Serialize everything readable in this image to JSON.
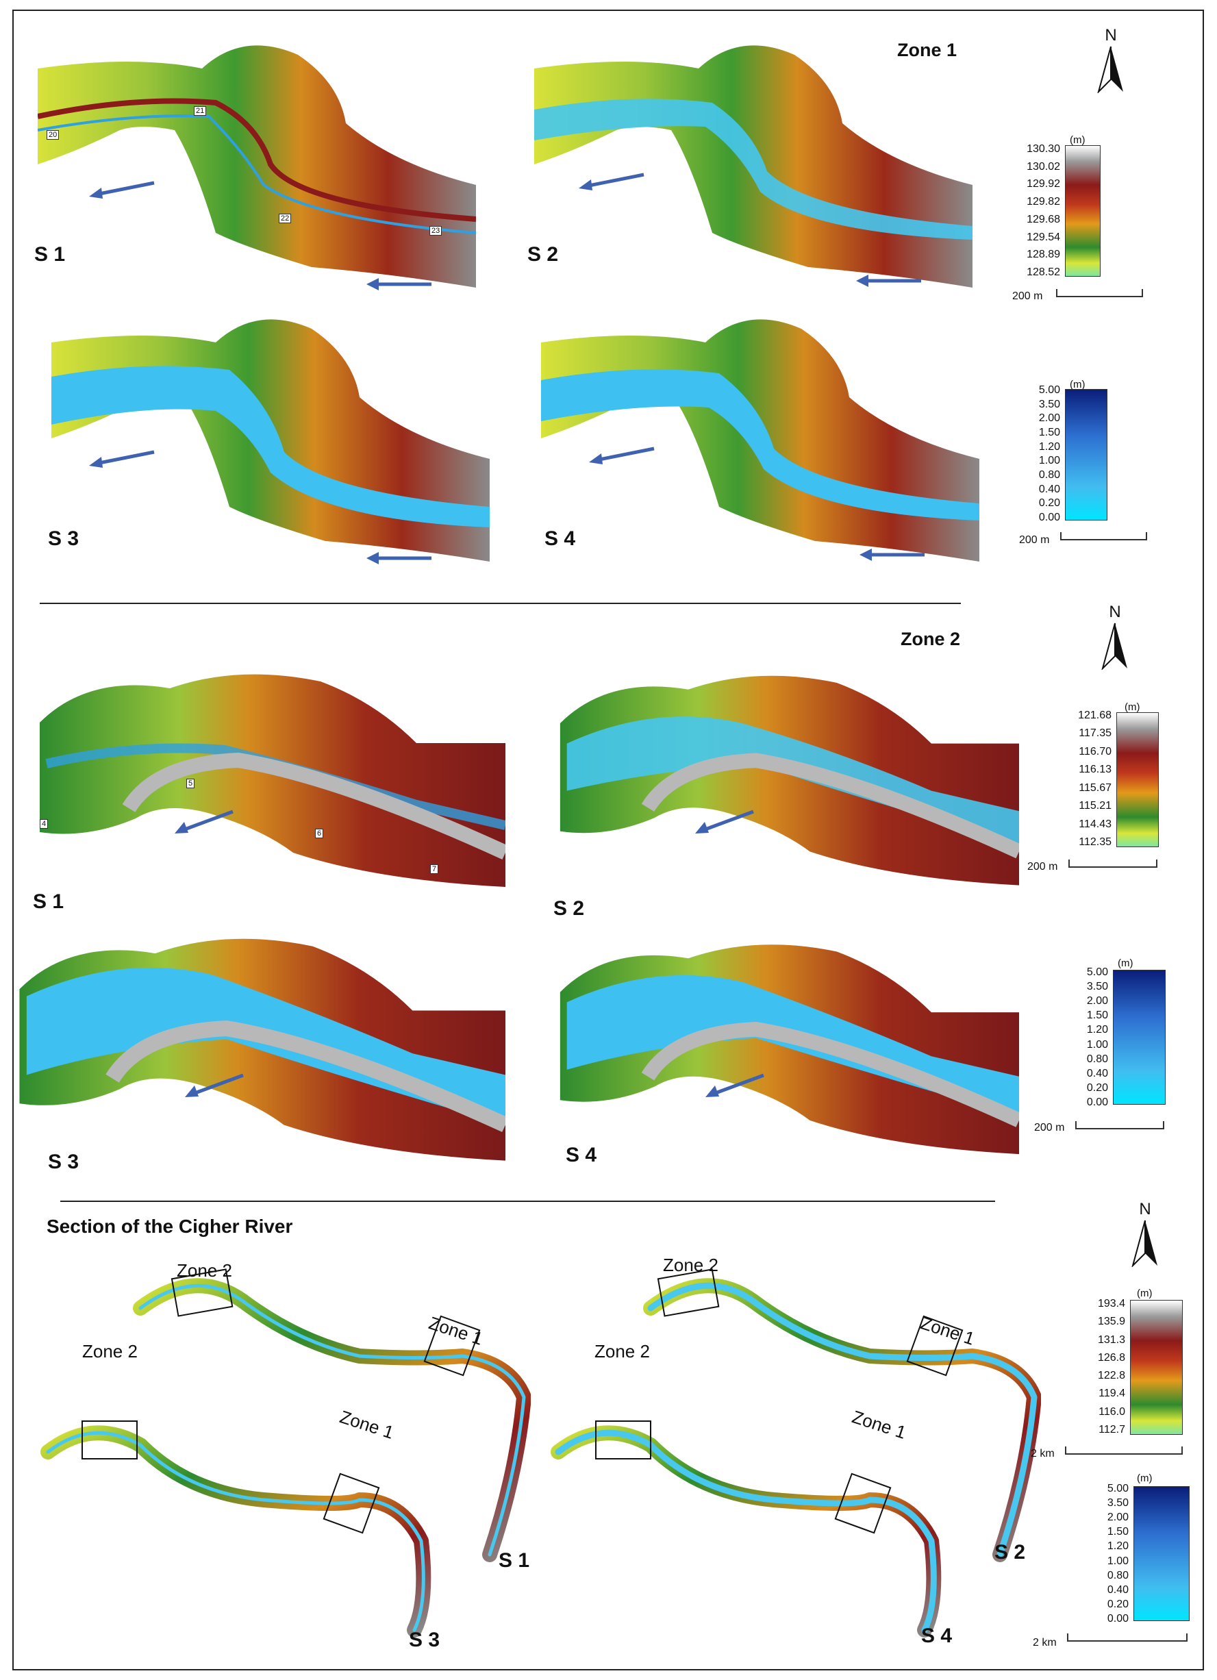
{
  "panels": {
    "zone1": {
      "title": "Zone 1",
      "scenarios": [
        "S 1",
        "S 2",
        "S 3",
        "S 4"
      ],
      "cross_sections": [
        "20",
        "21",
        "22",
        "23"
      ],
      "elevation_legend": {
        "unit": "(m)",
        "ticks": [
          "130.30",
          "130.02",
          "129.92",
          "129.82",
          "129.68",
          "129.54",
          "128.89",
          "128.52"
        ],
        "scale": "200 m"
      },
      "depth_legend": {
        "unit": "(m)",
        "ticks": [
          "5.00",
          "3.50",
          "2.00",
          "1.50",
          "1.20",
          "1.00",
          "0.80",
          "0.40",
          "0.20",
          "0.00"
        ],
        "scale": "200 m"
      }
    },
    "zone2": {
      "title": "Zone 2",
      "scenarios": [
        "S 1",
        "S 2",
        "S 3",
        "S 4"
      ],
      "cross_sections": [
        "4",
        "5",
        "6",
        "7"
      ],
      "elevation_legend": {
        "unit": "(m)",
        "ticks": [
          "121.68",
          "117.35",
          "116.70",
          "116.13",
          "115.67",
          "115.21",
          "114.43",
          "112.35"
        ],
        "scale": "200 m"
      },
      "depth_legend": {
        "unit": "(m)",
        "ticks": [
          "5.00",
          "3.50",
          "2.00",
          "1.50",
          "1.20",
          "1.00",
          "0.80",
          "0.40",
          "0.20",
          "0.00"
        ],
        "scale": "200 m"
      }
    },
    "section": {
      "title": "Section of the Cigher River",
      "scenarios": [
        "S 1",
        "S 2",
        "S 3",
        "S 4"
      ],
      "zone_labels": [
        "Zone 1",
        "Zone 2"
      ],
      "elevation_legend": {
        "unit": "(m)",
        "ticks": [
          "193.4",
          "135.9",
          "131.3",
          "126.8",
          "122.8",
          "119.4",
          "116.0",
          "112.7"
        ],
        "scale": "2 km"
      },
      "depth_legend": {
        "unit": "(m)",
        "ticks": [
          "5.00",
          "3.50",
          "2.00",
          "1.50",
          "1.20",
          "1.00",
          "0.80",
          "0.40",
          "0.20",
          "0.00"
        ],
        "scale": "2 km"
      }
    }
  },
  "north_label": "N",
  "colors": {
    "elev_ramp": [
      "#ffffff",
      "#9a9a9a",
      "#8b1a1a",
      "#c0381c",
      "#e39a1a",
      "#2e8b2e",
      "#d8e63a",
      "#7fe6a0"
    ],
    "depth_ramp": [
      "#0a1e7a",
      "#2d6fd0",
      "#41bdf0",
      "#00e5ff"
    ],
    "flow_arrow": "#3f62b0"
  }
}
